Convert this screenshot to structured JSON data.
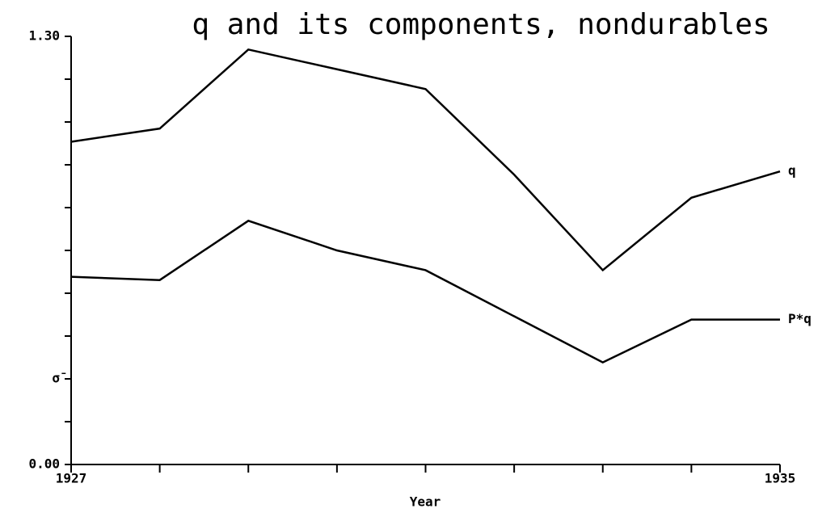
{
  "chart_data": {
    "type": "line",
    "title": "q and its components, nondurables",
    "x_label": "Year",
    "x": [
      1927,
      1928,
      1929,
      1930,
      1931,
      1932,
      1933,
      1934,
      1935
    ],
    "series": [
      {
        "name": "q",
        "color": "#000000",
        "values": [
          0.98,
          1.02,
          1.26,
          1.2,
          1.14,
          0.88,
          0.59,
          0.81,
          0.89
        ]
      },
      {
        "name": "P*q",
        "color": "#000000",
        "values": [
          0.57,
          0.56,
          0.74,
          0.65,
          0.59,
          0.45,
          0.31,
          0.44,
          0.44
        ]
      }
    ],
    "xlim": [
      1927,
      1935
    ],
    "xticks": [
      1927,
      {
        "value": 1928,
        "label": null
      },
      {
        "value": 1929,
        "label": null
      },
      {
        "value": 1930,
        "label": null
      },
      {
        "value": 1931,
        "label": null
      },
      {
        "value": 1932,
        "label": null
      },
      {
        "value": 1933,
        "label": null
      },
      {
        "value": 1934,
        "label": null
      },
      1935
    ],
    "ylim": [
      0,
      1.3
    ],
    "yticks": [
      {
        "value": 0,
        "label": "0.00"
      },
      {
        "value": 0.13,
        "label": null
      },
      {
        "value": 0.26,
        "label": "σ̄"
      },
      {
        "value": 0.39,
        "label": null
      },
      {
        "value": 0.52,
        "label": null
      },
      {
        "value": 0.65,
        "label": null
      },
      {
        "value": 0.78,
        "label": null
      },
      {
        "value": 0.91,
        "label": null
      },
      {
        "value": 1.04,
        "label": null
      },
      {
        "value": 1.17,
        "label": null
      },
      {
        "value": 1.3,
        "label": "1.30"
      }
    ],
    "grid": false
  }
}
